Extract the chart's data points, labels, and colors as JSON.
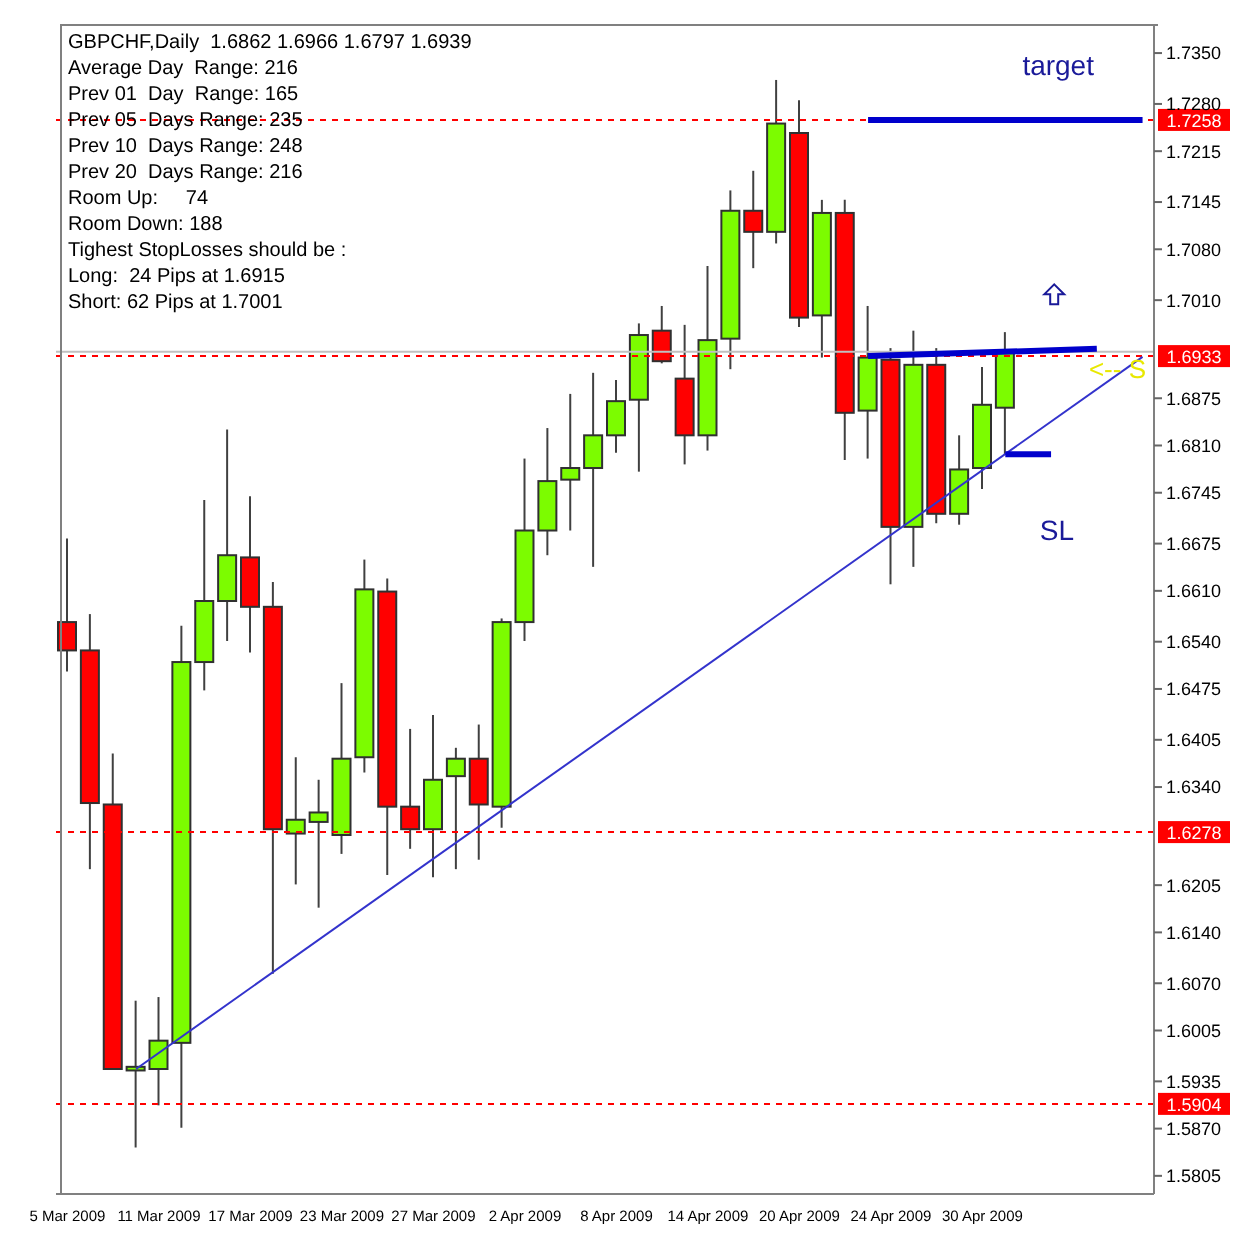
{
  "chart_data": {
    "type": "candlestick",
    "title": "GBPCHF,Daily  1.6862 1.6966 1.6797 1.6939",
    "categories": [
      "5 Mar 2009",
      null,
      null,
      null,
      "11 Mar 2009",
      null,
      null,
      null,
      "17 Mar 2009",
      null,
      null,
      null,
      "23 Mar 2009",
      null,
      null,
      null,
      "27 Mar 2009",
      null,
      null,
      null,
      "2 Apr 2009",
      null,
      null,
      null,
      "8 Apr 2009",
      null,
      null,
      null,
      "14 Apr 2009",
      null,
      null,
      null,
      "20 Apr 2009",
      null,
      null,
      null,
      "24 Apr 2009",
      null,
      null,
      null,
      "30 Apr 2009",
      null,
      null,
      null,
      null,
      null,
      null,
      null
    ],
    "ohlc": [
      [
        1.6567,
        1.6682,
        1.6499,
        1.6528
      ],
      [
        1.6528,
        1.6578,
        1.6227,
        1.6318
      ],
      [
        1.6316,
        1.6386,
        1.5952,
        1.5952
      ],
      [
        1.595,
        1.6046,
        1.5844,
        1.5955
      ],
      [
        1.5952,
        1.6051,
        1.5902,
        1.5991
      ],
      [
        1.5988,
        1.6562,
        1.5871,
        1.6512
      ],
      [
        1.6512,
        1.6735,
        1.6473,
        1.6596
      ],
      [
        1.6596,
        1.6832,
        1.6541,
        1.6659
      ],
      [
        1.6656,
        1.674,
        1.6525,
        1.6588
      ],
      [
        1.6588,
        1.6622,
        1.6083,
        1.6282
      ],
      [
        1.6276,
        1.6381,
        1.6206,
        1.6295
      ],
      [
        1.6292,
        1.635,
        1.6174,
        1.6305
      ],
      [
        1.6274,
        1.6483,
        1.6248,
        1.6379
      ],
      [
        1.6381,
        1.6653,
        1.636,
        1.6612
      ],
      [
        1.6609,
        1.6627,
        1.6219,
        1.6313
      ],
      [
        1.6313,
        1.642,
        1.6255,
        1.6282
      ],
      [
        1.6282,
        1.6439,
        1.6216,
        1.635
      ],
      [
        1.6355,
        1.6394,
        1.6227,
        1.6379
      ],
      [
        1.6379,
        1.6426,
        1.624,
        1.6316
      ],
      [
        1.6313,
        1.6572,
        1.6284,
        1.6567
      ],
      [
        1.6567,
        1.6792,
        1.6541,
        1.6693
      ],
      [
        1.6693,
        1.6834,
        1.6659,
        1.6761
      ],
      [
        1.6763,
        1.6881,
        1.6693,
        1.6779
      ],
      [
        1.6779,
        1.691,
        1.6643,
        1.6824
      ],
      [
        1.6824,
        1.69,
        1.68,
        1.6871
      ],
      [
        1.6873,
        1.6978,
        1.6774,
        1.6962
      ],
      [
        1.6968,
        1.7002,
        1.6923,
        1.6926
      ],
      [
        1.6902,
        1.6976,
        1.6784,
        1.6824
      ],
      [
        1.6824,
        1.7057,
        1.6803,
        1.6955
      ],
      [
        1.6957,
        1.7161,
        1.6915,
        1.7133
      ],
      [
        1.7133,
        1.7188,
        1.7054,
        1.7104
      ],
      [
        1.7104,
        1.7313,
        1.7088,
        1.7253
      ],
      [
        1.724,
        1.7285,
        1.6973,
        1.6986
      ],
      [
        1.6989,
        1.7148,
        1.6931,
        1.713
      ],
      [
        1.713,
        1.7148,
        1.679,
        1.6855
      ],
      [
        1.6858,
        1.7002,
        1.6792,
        1.6931
      ],
      [
        1.6928,
        1.6944,
        1.6619,
        1.6698
      ],
      [
        1.6698,
        1.6968,
        1.6643,
        1.6921
      ],
      [
        1.6921,
        1.6944,
        1.6703,
        1.6716
      ],
      [
        1.6716,
        1.6824,
        1.6701,
        1.6777
      ],
      [
        1.6779,
        1.6918,
        1.675,
        1.6866
      ],
      [
        1.6862,
        1.6966,
        1.6797,
        1.6939
      ],
      null,
      null,
      null,
      null,
      null,
      null
    ],
    "series": [
      {
        "type": "line",
        "color": "#3333cc",
        "values": [
          null,
          null,
          null,
          1.5952,
          null,
          null,
          null,
          null,
          null,
          null,
          null,
          null,
          null,
          null,
          null,
          null,
          null,
          null,
          null,
          null,
          null,
          null,
          null,
          null,
          null,
          null,
          null,
          null,
          null,
          null,
          null,
          null,
          null,
          null,
          null,
          null,
          null,
          null,
          null,
          null,
          null,
          null,
          null,
          null,
          null,
          null,
          null,
          1.6932
        ]
      },
      {
        "type": "line",
        "color": "#0000cc",
        "values": [
          null,
          null,
          null,
          null,
          null,
          null,
          null,
          null,
          null,
          null,
          null,
          null,
          null,
          null,
          null,
          null,
          null,
          null,
          null,
          null,
          null,
          null,
          null,
          null,
          null,
          null,
          null,
          null,
          null,
          null,
          null,
          null,
          null,
          null,
          null,
          1.6933,
          null,
          null,
          null,
          null,
          null,
          null,
          null,
          null,
          null,
          1.6943,
          null,
          null
        ]
      },
      {
        "type": "line",
        "color": "#0000cc",
        "values": [
          null,
          null,
          null,
          null,
          null,
          null,
          null,
          null,
          null,
          null,
          null,
          null,
          null,
          null,
          null,
          null,
          null,
          null,
          null,
          null,
          null,
          null,
          null,
          null,
          null,
          null,
          null,
          null,
          null,
          null,
          null,
          null,
          null,
          null,
          null,
          1.7258,
          null,
          null,
          null,
          null,
          null,
          null,
          null,
          null,
          null,
          null,
          null,
          1.7258
        ]
      },
      {
        "type": "line",
        "color": "#0000cc",
        "values": [
          null,
          null,
          null,
          null,
          null,
          null,
          null,
          null,
          null,
          null,
          null,
          null,
          null,
          null,
          null,
          null,
          null,
          null,
          null,
          null,
          null,
          null,
          null,
          null,
          null,
          null,
          null,
          null,
          null,
          null,
          null,
          null,
          null,
          null,
          null,
          null,
          null,
          null,
          null,
          null,
          null,
          1.6798,
          null,
          1.6798,
          null,
          null,
          null,
          null
        ]
      }
    ],
    "ylim": [
      1.578,
      1.739
    ],
    "yticks": [
      {
        "value": 1.735,
        "label": "1.7350"
      },
      {
        "value": 1.728,
        "label": "1.7280"
      },
      1.7215,
      1.7145,
      {
        "value": 1.708,
        "label": "1.7080"
      },
      {
        "value": 1.701,
        "label": "1.7010"
      },
      1.6875,
      {
        "value": 1.681,
        "label": "1.6810"
      },
      1.6745,
      1.6675,
      {
        "value": 1.661,
        "label": "1.6610"
      },
      {
        "value": 1.654,
        "label": "1.6540"
      },
      1.6475,
      1.6405,
      {
        "value": 1.634,
        "label": "1.6340"
      },
      1.6205,
      {
        "value": 1.614,
        "label": "1.6140"
      },
      {
        "value": 1.607,
        "label": "1.6070"
      },
      1.6005,
      1.5935,
      {
        "value": 1.587,
        "label": "1.5870"
      },
      1.5805
    ],
    "ref_lines": [
      {
        "axis": "y",
        "value": 1.7258,
        "label": "1.7258",
        "color": "#ff0000",
        "line_style": "dashed"
      },
      {
        "axis": "y",
        "value": 1.6933,
        "label": "1.6933",
        "color": "#ff0000",
        "line_style": "dashed"
      },
      {
        "axis": "y",
        "value": 1.6278,
        "label": "1.6278",
        "color": "#ff0000",
        "line_style": "dashed"
      },
      {
        "axis": "y",
        "value": 1.5904,
        "label": "1.5904",
        "color": "#ff0000",
        "line_style": "dashed"
      },
      {
        "axis": "y",
        "value": 1.6939,
        "color": "#c0c0c0",
        "line_style": "solid"
      }
    ],
    "annotations": [
      "Average Day  Range: 216",
      "Prev 01  Day  Range: 165",
      "Prev 05  Days Range: 235",
      "Prev 10  Days Range: 248",
      "Prev 20  Days Range: 216",
      "Room Up:     74",
      "Room Down: 188",
      "Tighest StopLosses should be :",
      "Long:  24 Pips at 1.6915",
      "Short: 62 Pips at 1.7001",
      "target",
      "SL",
      "<-- S"
    ]
  }
}
